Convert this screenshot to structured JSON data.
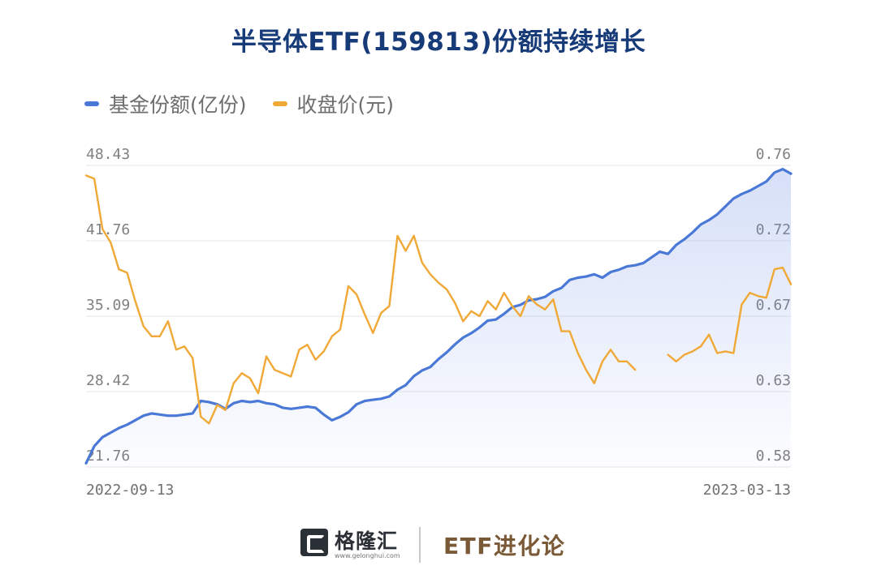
{
  "title": "半导体ETF(159813)份额持续增长",
  "legend": [
    {
      "label": "基金份额(亿份)",
      "color": "#4a78d6"
    },
    {
      "label": "收盘价(元)",
      "color": "#f0a836"
    }
  ],
  "footer": {
    "brand": "格隆汇",
    "brand_url": "www.gelonghui.com",
    "column": "ETF进化论"
  },
  "chart_data": {
    "type": "line",
    "title": "半导体ETF(159813)份额持续增长",
    "x_start_label": "2022-09-13",
    "x_end_label": "2023-03-13",
    "y_left": {
      "ticks": [
        "48.43",
        "41.76",
        "35.09",
        "28.42",
        "21.76"
      ],
      "min": 21.76,
      "max": 48.43
    },
    "y_right": {
      "ticks": [
        "0.76",
        "0.72",
        "0.67",
        "0.63",
        "0.58"
      ],
      "min": 0.58,
      "max": 0.76
    },
    "grid": true,
    "legend_position": "top-left",
    "series": [
      {
        "name": "基金份额(亿份)",
        "axis": "left",
        "color": "#4a78d6",
        "values": [
          22.1,
          23.6,
          24.4,
          24.8,
          25.2,
          25.5,
          25.9,
          26.3,
          26.5,
          26.4,
          26.3,
          26.3,
          26.4,
          26.5,
          27.6,
          27.5,
          27.3,
          26.9,
          27.4,
          27.6,
          27.5,
          27.6,
          27.4,
          27.3,
          27.0,
          26.9,
          27.0,
          27.1,
          27.0,
          26.4,
          25.9,
          26.2,
          26.6,
          27.3,
          27.6,
          27.7,
          27.8,
          28.0,
          28.6,
          29.0,
          29.8,
          30.3,
          30.6,
          31.3,
          31.9,
          32.6,
          33.2,
          33.6,
          34.1,
          34.7,
          34.8,
          35.3,
          35.9,
          36.1,
          36.5,
          36.6,
          36.8,
          37.3,
          37.6,
          38.3,
          38.5,
          38.6,
          38.8,
          38.5,
          39.0,
          39.2,
          39.5,
          39.6,
          39.8,
          40.3,
          40.8,
          40.6,
          41.4,
          41.9,
          42.5,
          43.2,
          43.6,
          44.1,
          44.8,
          45.5,
          45.9,
          46.2,
          46.6,
          47.0,
          47.8,
          48.1,
          47.7
        ]
      },
      {
        "name": "收盘价(元)",
        "axis": "right",
        "color": "#f0a836",
        "values": [
          0.754,
          0.752,
          0.722,
          0.714,
          0.698,
          0.696,
          0.679,
          0.664,
          0.658,
          0.658,
          0.667,
          0.65,
          0.652,
          0.645,
          0.61,
          0.606,
          0.617,
          0.614,
          0.63,
          0.636,
          0.633,
          0.624,
          0.646,
          0.638,
          0.636,
          0.634,
          0.65,
          0.653,
          0.644,
          0.649,
          0.658,
          0.662,
          0.688,
          0.683,
          0.671,
          0.66,
          0.672,
          0.676,
          0.718,
          0.709,
          0.718,
          0.702,
          0.695,
          0.69,
          0.686,
          0.678,
          0.667,
          0.673,
          0.67,
          0.679,
          0.674,
          0.684,
          0.676,
          0.67,
          0.682,
          0.677,
          0.674,
          0.68,
          0.661,
          0.661,
          0.648,
          0.638,
          0.63,
          0.643,
          0.65,
          0.643,
          0.643,
          0.638,
          null,
          null,
          null,
          0.647,
          0.643,
          0.647,
          0.649,
          0.652,
          0.659,
          0.648,
          0.649,
          0.648,
          0.677,
          0.684,
          0.682,
          0.681,
          0.698,
          0.699,
          0.689
        ]
      }
    ]
  }
}
